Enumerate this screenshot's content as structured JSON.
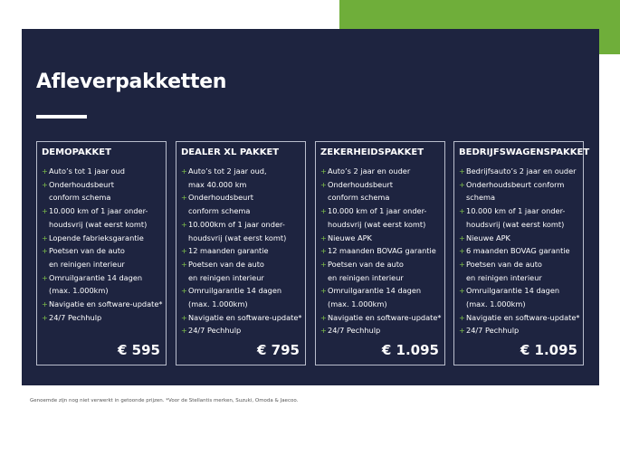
{
  "title": "Afleverpakketten",
  "colors": {
    "panel": "#1e2440",
    "accent": "#6fae3a"
  },
  "packages": [
    {
      "name": "DEMOPAKKET",
      "price": "€ 595",
      "items": [
        [
          "Auto’s tot 1 jaar oud"
        ],
        [
          "Onderhoudsbeurt",
          "conform schema"
        ],
        [
          "10.000 km of 1 jaar onder-",
          "houdsvrij (wat eerst komt)"
        ],
        [
          "Lopende fabrieksgarantie"
        ],
        [
          "Poetsen van de auto",
          "en reinigen interieur"
        ],
        [
          "Omruilgarantie 14 dagen",
          "(max. 1.000km)"
        ],
        [
          "Navigatie en software-update*"
        ],
        [
          "24/7 Pechhulp"
        ]
      ]
    },
    {
      "name": "DEALER XL PAKKET",
      "price": "€ 795",
      "items": [
        [
          "Auto’s tot 2 jaar oud,",
          "max 40.000 km"
        ],
        [
          "Onderhoudsbeurt",
          "conform schema"
        ],
        [
          "10.000km of 1 jaar onder-",
          "houdsvrij (wat eerst komt)"
        ],
        [
          "12 maanden garantie"
        ],
        [
          "Poetsen van de auto",
          "en reinigen interieur"
        ],
        [
          "Omruilgarantie 14 dagen",
          "(max. 1.000km)"
        ],
        [
          "Navigatie en software-update*"
        ],
        [
          "24/7 Pechhulp"
        ]
      ]
    },
    {
      "name": "ZEKERHEIDSPAKKET",
      "price": "€ 1.095",
      "items": [
        [
          "Auto’s 2 jaar en ouder"
        ],
        [
          "Onderhoudsbeurt",
          "conform schema"
        ],
        [
          "10.000 km of 1 jaar onder-",
          "houdsvrij (wat eerst komt)"
        ],
        [
          "Nieuwe APK"
        ],
        [
          "12 maanden BOVAG garantie"
        ],
        [
          "Poetsen van de auto",
          "en reinigen interieur"
        ],
        [
          "Omruilgarantie 14 dagen",
          "(max. 1.000km)"
        ],
        [
          "Navigatie en software-update*"
        ],
        [
          "24/7 Pechhulp"
        ]
      ]
    },
    {
      "name": "BEDRIJFSWAGENSPAKKET",
      "price": "€ 1.095",
      "items": [
        [
          "Bedrijfsauto’s 2 jaar en ouder"
        ],
        [
          "Onderhoudsbeurt conform",
          "schema"
        ],
        [
          "10.000 km of 1 jaar onder-",
          "houdsvrij (wat eerst komt)"
        ],
        [
          "Nieuwe APK"
        ],
        [
          "6 maanden BOVAG garantie"
        ],
        [
          "Poetsen van de auto",
          "en reinigen interieur"
        ],
        [
          "Omruilgarantie 14 dagen",
          "(max. 1.000km)"
        ],
        [
          "Navigatie en software-update*"
        ],
        [
          "24/7 Pechhulp"
        ]
      ]
    }
  ],
  "footnote": "Genoemde zijn nog niet verwerkt in getoonde prijzen. *Voor de Stellantis merken, Suzuki, Omoda & Jaecoo."
}
